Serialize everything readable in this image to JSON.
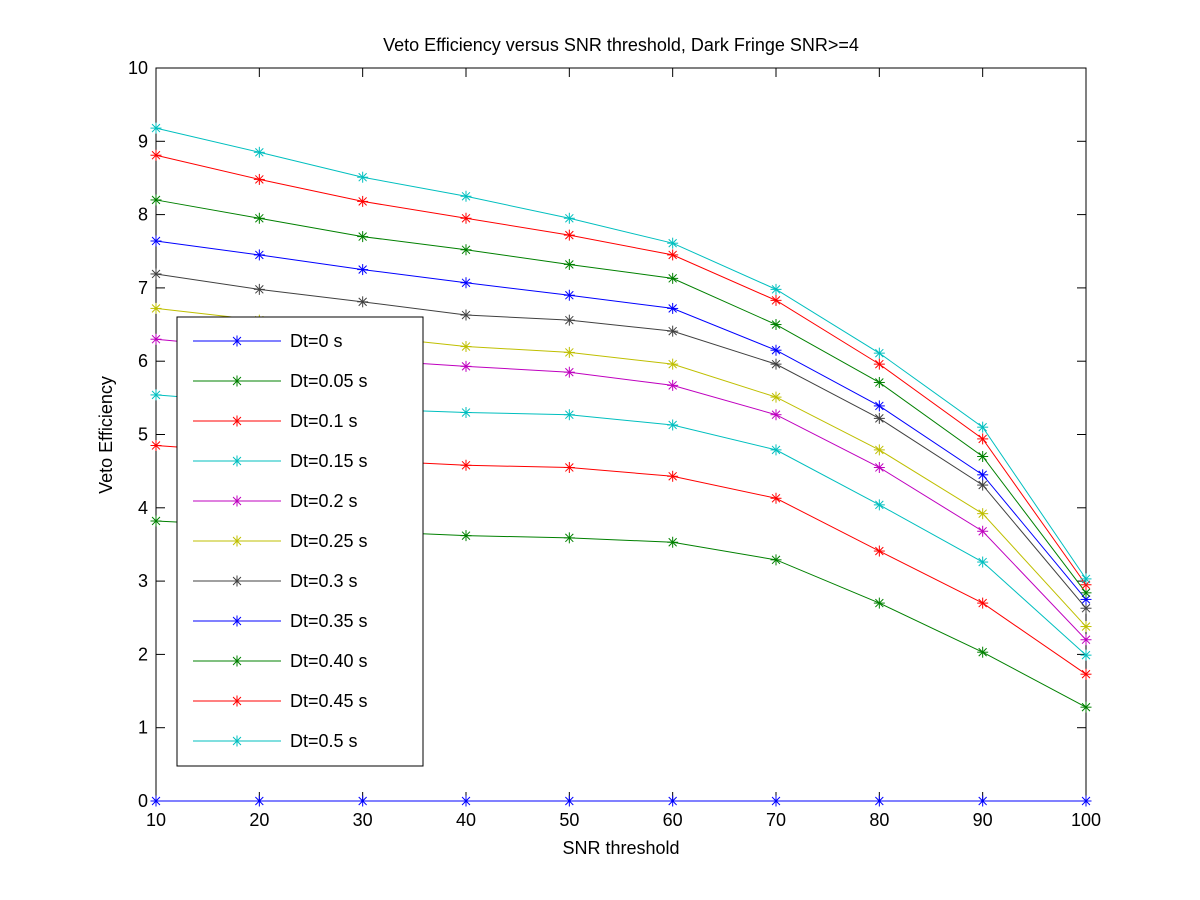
{
  "chart_data": {
    "type": "line",
    "title": "Veto Efficiency versus SNR threshold, Dark Fringe SNR>=4",
    "xlabel": "SNR threshold",
    "ylabel": "Veto Efficiency",
    "xlim": [
      10,
      100
    ],
    "ylim": [
      0,
      10
    ],
    "xticks": [
      "10",
      "20",
      "30",
      "40",
      "50",
      "60",
      "70",
      "80",
      "90",
      "100"
    ],
    "yticks": [
      "0",
      "1",
      "2",
      "3",
      "4",
      "5",
      "6",
      "7",
      "8",
      "9",
      "10"
    ],
    "grid": false,
    "legend_position": "left",
    "marker": "asterisk",
    "x": [
      10,
      20,
      30,
      40,
      50,
      60,
      70,
      80,
      90,
      100
    ],
    "series": [
      {
        "name": "Dt=0 s",
        "color": "#0000ff",
        "values": [
          0,
          0,
          0,
          0,
          0,
          0,
          0,
          0,
          0,
          0
        ]
      },
      {
        "name": "Dt=0.05 s",
        "color": "#008000",
        "values": [
          3.82,
          3.75,
          3.68,
          3.62,
          3.59,
          3.53,
          3.29,
          2.7,
          2.03,
          1.28
        ]
      },
      {
        "name": "Dt=0.1 s",
        "color": "#ff0000",
        "values": [
          4.85,
          4.75,
          4.65,
          4.58,
          4.55,
          4.43,
          4.13,
          3.41,
          2.7,
          1.73
        ]
      },
      {
        "name": "Dt=0.15 s",
        "color": "#00bfbf",
        "values": [
          5.54,
          5.43,
          5.35,
          5.3,
          5.27,
          5.13,
          4.79,
          4.04,
          3.26,
          1.99
        ]
      },
      {
        "name": "Dt=0.2 s",
        "color": "#bf00bf",
        "values": [
          6.3,
          6.17,
          6.02,
          5.93,
          5.85,
          5.67,
          5.27,
          4.55,
          3.68,
          2.2
        ]
      },
      {
        "name": "Dt=0.25 s",
        "color": "#bfbf00",
        "values": [
          6.72,
          6.56,
          6.35,
          6.2,
          6.12,
          5.96,
          5.51,
          4.79,
          3.92,
          2.38
        ]
      },
      {
        "name": "Dt=0.3 s",
        "color": "#404040",
        "values": [
          7.19,
          6.98,
          6.81,
          6.63,
          6.56,
          6.41,
          5.96,
          5.22,
          4.31,
          2.63
        ]
      },
      {
        "name": "Dt=0.35 s",
        "color": "#0000ff",
        "values": [
          7.64,
          7.45,
          7.25,
          7.07,
          6.9,
          6.72,
          6.15,
          5.39,
          4.45,
          2.75
        ]
      },
      {
        "name": "Dt=0.40 s",
        "color": "#008000",
        "values": [
          8.2,
          7.95,
          7.7,
          7.52,
          7.32,
          7.13,
          6.5,
          5.71,
          4.7,
          2.84
        ]
      },
      {
        "name": "Dt=0.45 s",
        "color": "#ff0000",
        "values": [
          8.81,
          8.48,
          8.18,
          7.95,
          7.72,
          7.45,
          6.83,
          5.96,
          4.94,
          2.95
        ]
      },
      {
        "name": "Dt=0.5 s",
        "color": "#00bfbf",
        "values": [
          9.18,
          8.85,
          8.51,
          8.25,
          7.95,
          7.61,
          6.98,
          6.11,
          5.1,
          3.03
        ]
      }
    ]
  }
}
